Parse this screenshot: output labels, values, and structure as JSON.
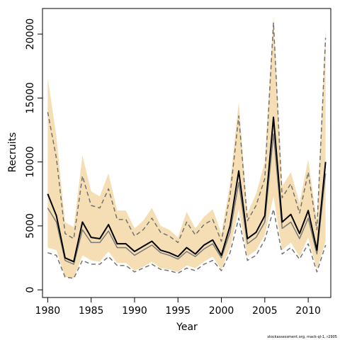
{
  "chart_data": {
    "type": "line",
    "xlabel": "Year",
    "ylabel": "Recruits",
    "xlim": [
      1979.4,
      2012.6
    ],
    "ylim": [
      -600,
      22000
    ],
    "xticks": [
      1980,
      1985,
      1990,
      1995,
      2000,
      2005,
      2010
    ],
    "yticks": [
      0,
      5000,
      10000,
      15000,
      20000
    ],
    "x": [
      1980,
      1981,
      1982,
      1983,
      1984,
      1985,
      1986,
      1987,
      1988,
      1989,
      1990,
      1991,
      1992,
      1993,
      1994,
      1995,
      1996,
      1997,
      1998,
      1999,
      2000,
      2001,
      2002,
      2003,
      2004,
      2005,
      2006,
      2007,
      2008,
      2009,
      2010,
      2011,
      2012
    ],
    "band": {
      "color": "#f5deb3",
      "upper": [
        16600,
        12000,
        5300,
        4900,
        10500,
        7700,
        7300,
        9100,
        6200,
        6200,
        4800,
        5400,
        6400,
        5000,
        4700,
        4100,
        6100,
        4800,
        5700,
        6300,
        4400,
        8300,
        14700,
        6000,
        7500,
        10000,
        21400,
        8100,
        9200,
        6800,
        10200,
        5400,
        20400
      ],
      "lower": [
        3300,
        3100,
        1000,
        900,
        2700,
        2300,
        2200,
        3000,
        2100,
        2100,
        1500,
        1800,
        2200,
        1700,
        1600,
        1400,
        1900,
        1700,
        2200,
        2600,
        1600,
        3300,
        6300,
        2600,
        3100,
        4300,
        7300,
        3100,
        3700,
        2600,
        4100,
        1600,
        3800
      ]
    },
    "series": [
      {
        "color": "#000000",
        "width": 2,
        "dash": "",
        "values": [
          7500,
          5800,
          2500,
          2200,
          5300,
          4100,
          4000,
          5100,
          3600,
          3600,
          3000,
          3400,
          3800,
          3100,
          2900,
          2600,
          3300,
          2800,
          3500,
          3900,
          2700,
          5000,
          9300,
          4000,
          4500,
          5800,
          13500,
          5300,
          5900,
          4400,
          6200,
          3100,
          10000
        ]
      },
      {
        "color": "#7a7a7a",
        "width": 1.5,
        "dash": "",
        "values": [
          6400,
          5300,
          2300,
          2000,
          4700,
          3700,
          3700,
          4600,
          3300,
          3300,
          2700,
          3100,
          3500,
          2900,
          2700,
          2400,
          3000,
          2600,
          3200,
          3600,
          2500,
          4500,
          8400,
          3600,
          4100,
          5300,
          12200,
          4800,
          5300,
          4000,
          5600,
          2800,
          9100
        ]
      },
      {
        "color": "#737373",
        "width": 1.5,
        "dash": "6,4",
        "values": [
          13900,
          10300,
          4400,
          4000,
          8900,
          6600,
          6400,
          7900,
          5500,
          5500,
          4200,
          4700,
          5600,
          4500,
          4200,
          3700,
          5300,
          4300,
          5100,
          5500,
          3800,
          7400,
          13600,
          5400,
          6600,
          8700,
          20900,
          7200,
          8300,
          6000,
          9200,
          4700,
          19700
        ]
      },
      {
        "color": "#737373",
        "width": 1.5,
        "dash": "6,4",
        "values": [
          2900,
          2700,
          1000,
          900,
          2300,
          2000,
          2000,
          2600,
          1900,
          1900,
          1400,
          1700,
          2000,
          1600,
          1500,
          1300,
          1700,
          1500,
          2000,
          2300,
          1500,
          2900,
          5600,
          2300,
          2700,
          3900,
          6300,
          2800,
          3300,
          2400,
          3600,
          1400,
          3500
        ]
      }
    ],
    "credit": "stockassessment.org, mack-ql-1, r2905"
  }
}
